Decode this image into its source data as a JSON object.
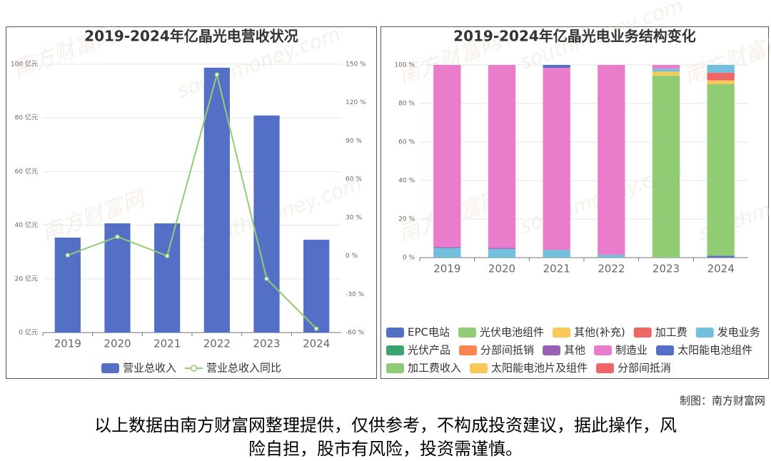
{
  "chart_data": [
    {
      "type": "bar",
      "title": "2019-2024年亿晶光电营收状况",
      "categories": [
        "2019",
        "2020",
        "2021",
        "2022",
        "2023",
        "2024"
      ],
      "series": [
        {
          "name": "营业总收入",
          "color": "#5470c6",
          "values": [
            35.4,
            40.7,
            40.7,
            98.7,
            80.9,
            34.6
          ]
        },
        {
          "name": "营业总收入同比",
          "type": "line",
          "axis": "y2",
          "color": "#91cc75",
          "values": [
            0.5,
            15,
            0,
            141.9,
            -17.9,
            -57
          ]
        }
      ],
      "ylim": [
        0,
        100
      ],
      "yticks": [
        {
          "value": 0,
          "label": "0 亿元"
        },
        {
          "value": 20,
          "label": "20 亿元"
        },
        {
          "value": 40,
          "label": "40 亿元"
        },
        {
          "value": 60,
          "label": "60 亿元"
        },
        {
          "value": 80,
          "label": "80 亿元"
        },
        {
          "value": 100,
          "label": "100 亿元"
        }
      ],
      "y2lim": [
        -60,
        150
      ],
      "y2ticks": [
        {
          "value": -60,
          "label": "-60 %"
        },
        {
          "value": -30,
          "label": "-30 %"
        },
        {
          "value": 0,
          "label": "0 %"
        },
        {
          "value": 30,
          "label": "30 %"
        },
        {
          "value": 60,
          "label": "60 %"
        },
        {
          "value": 90,
          "label": "90 %"
        },
        {
          "value": 120,
          "label": "120 %"
        },
        {
          "value": 150,
          "label": "150 %"
        }
      ],
      "grid": true,
      "legend": "bottom"
    },
    {
      "type": "bar",
      "stacked": true,
      "title": "2019-2024年亿晶光电业务结构变化",
      "categories": [
        "2019",
        "2020",
        "2021",
        "2022",
        "2023",
        "2024"
      ],
      "series": [
        {
          "name": "EPC电站",
          "color": "#5470c6",
          "values": [
            null,
            null,
            null,
            null,
            null,
            1
          ]
        },
        {
          "name": "光伏电池组件",
          "color": "#91cc75",
          "values": [
            null,
            null,
            null,
            null,
            94.5,
            89
          ]
        },
        {
          "name": "其他(补充)",
          "color": "#fac858",
          "values": [
            null,
            null,
            null,
            null,
            2,
            2
          ]
        },
        {
          "name": "加工费",
          "color": "#ee6666",
          "values": [
            null,
            null,
            null,
            null,
            null,
            4
          ]
        },
        {
          "name": "发电业务",
          "color": "#73c0de",
          "values": [
            5,
            4.5,
            4,
            1.5,
            1.5,
            4
          ]
        },
        {
          "name": "光伏产品",
          "color": "#3ba272",
          "values": [
            null,
            null,
            null,
            null,
            null,
            null
          ]
        },
        {
          "name": "分部间抵销",
          "color": "#fc8452",
          "values": [
            null,
            null,
            null,
            null,
            null,
            null
          ]
        },
        {
          "name": "其他",
          "color": "#9a60b4",
          "values": [
            0.5,
            0.5,
            null,
            null,
            null,
            null
          ]
        },
        {
          "name": "制造业",
          "color": "#ea7ccc",
          "values": [
            94.5,
            95,
            94.5,
            98.5,
            2,
            null
          ]
        },
        {
          "name": "太阳能电池组件",
          "color": "#5470c6",
          "values": [
            null,
            null,
            1.5,
            null,
            null,
            null
          ]
        },
        {
          "name": "加工费收入",
          "color": "#91cc75",
          "values": [
            null,
            null,
            null,
            null,
            null,
            null
          ]
        },
        {
          "name": "太阳能电池片及组件",
          "color": "#fac858",
          "values": [
            null,
            null,
            null,
            null,
            null,
            null
          ]
        },
        {
          "name": "分部间抵消",
          "color": "#ee6666",
          "values": [
            null,
            null,
            null,
            null,
            null,
            null
          ]
        }
      ],
      "ylim": [
        0,
        100
      ],
      "yticks": [
        {
          "value": 0,
          "label": "0 %"
        },
        {
          "value": 20,
          "label": "20 %"
        },
        {
          "value": 40,
          "label": "40 %"
        },
        {
          "value": 60,
          "label": "60 %"
        },
        {
          "value": 80,
          "label": "80 %"
        },
        {
          "value": 100,
          "label": "100 %"
        }
      ],
      "grid": true,
      "legend": "bottom"
    }
  ],
  "watermark": [
    "南方财富网",
    "southmoney.com"
  ],
  "credit": "制图：南方财富网",
  "disclaimer": [
    "以上数据由南方财富网整理提供，仅供参考，不构成投资建议，据此操作，风",
    "险自担，股市有风险，投资需谨慎。"
  ]
}
